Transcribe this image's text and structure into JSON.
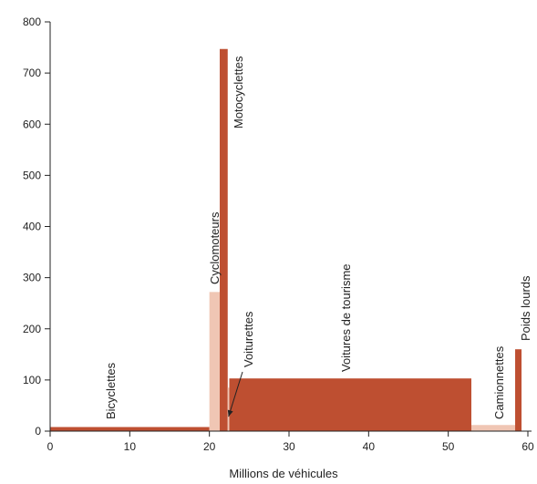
{
  "chart_data": {
    "type": "bar",
    "variable_width": true,
    "xlabel": "Millions de véhicules",
    "ylabel": "",
    "xlim": [
      0,
      60
    ],
    "ylim": [
      0,
      800
    ],
    "x_ticks": [
      0,
      10,
      20,
      30,
      40,
      50,
      60
    ],
    "y_ticks": [
      0,
      100,
      200,
      300,
      400,
      500,
      600,
      700,
      800
    ],
    "grid": false,
    "legend": "none",
    "bars": [
      {
        "label": "Bicyclettes",
        "x_start": 0,
        "x_end": 20,
        "value": 8,
        "color": "#be4f31"
      },
      {
        "label": "Cyclomoteurs",
        "x_start": 20,
        "x_end": 21.3,
        "value": 272,
        "color": "#f0c6b4"
      },
      {
        "label": "Motocyclettes",
        "x_start": 21.3,
        "x_end": 22.3,
        "value": 747,
        "color": "#be4f31"
      },
      {
        "label": "Voiturettes",
        "x_start": 22.3,
        "x_end": 22.5,
        "value": 85,
        "color": "#f0c6b4"
      },
      {
        "label": "Voitures de tourisme",
        "x_start": 22.5,
        "x_end": 52.9,
        "value": 103,
        "color": "#be4f31"
      },
      {
        "label": "Camionnettes",
        "x_start": 52.9,
        "x_end": 58.4,
        "value": 12,
        "color": "#f0c6b4"
      },
      {
        "label": "Poids lourds",
        "x_start": 58.4,
        "x_end": 59.2,
        "value": 160,
        "color": "#be4f31"
      }
    ]
  }
}
